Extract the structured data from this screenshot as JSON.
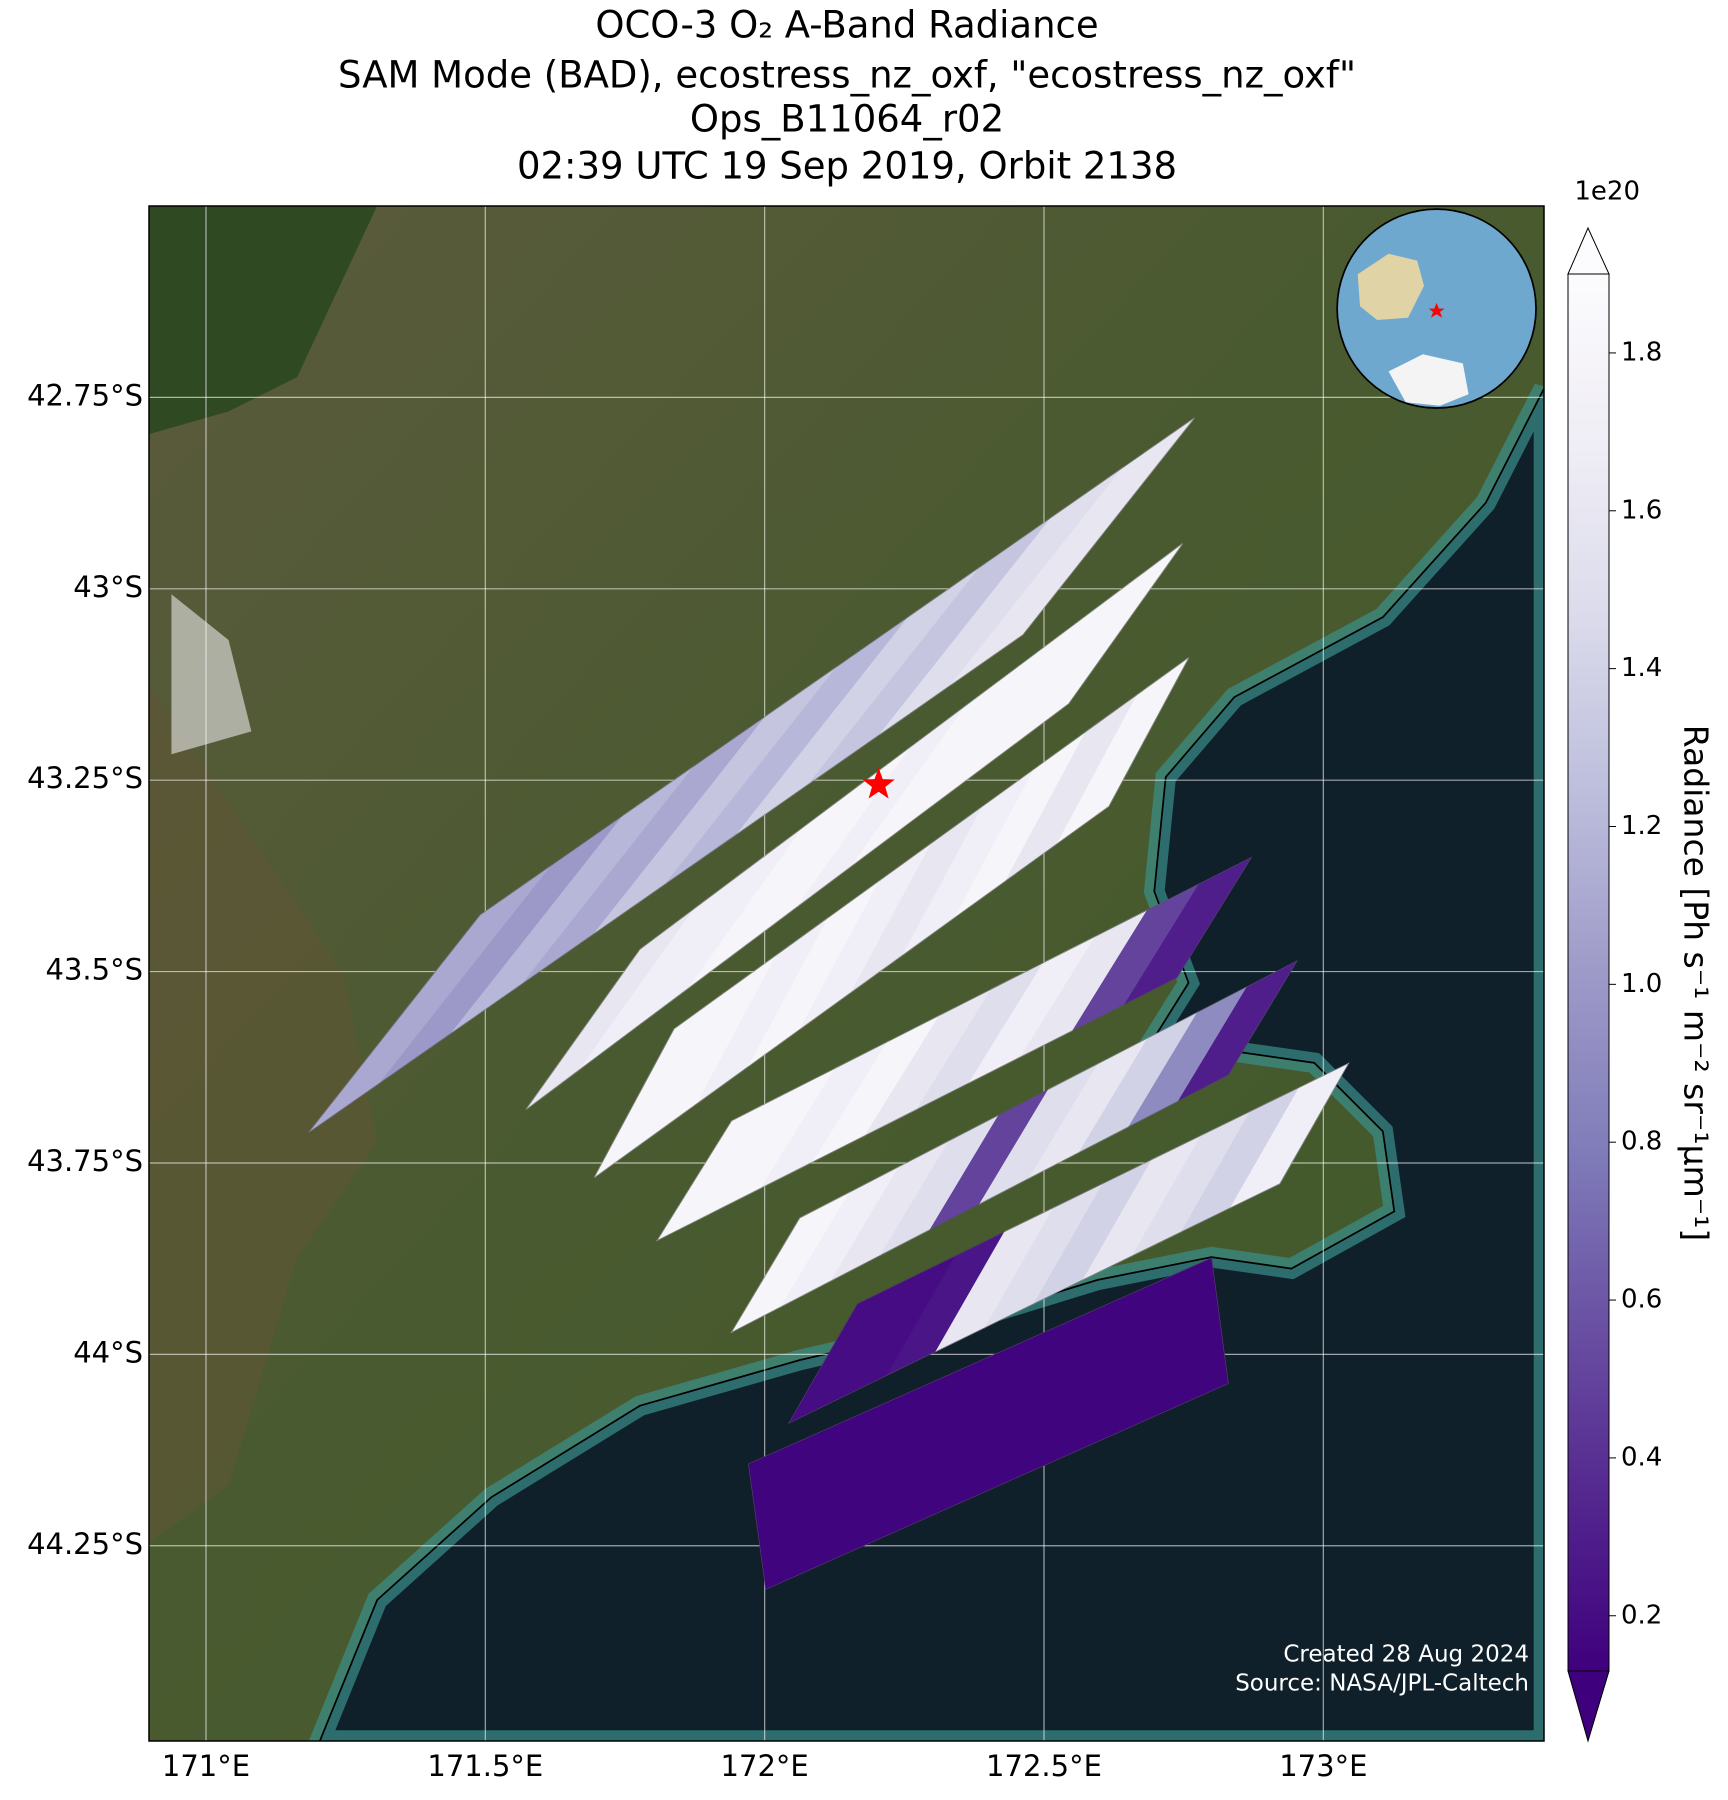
{
  "chart_data": {
    "type": "map",
    "title": [
      "OCO-3 O₂ A-Band Radiance",
      "SAM Mode (BAD), ecostress_nz_oxf, \"ecostress_nz_oxf\"",
      "Ops_B11064_r02",
      "02:39 UTC 19 Sep 2019, Orbit 2138"
    ],
    "xlim": [
      170.898,
      173.395
    ],
    "ylim": [
      -44.505,
      -42.5
    ],
    "xticks": [
      {
        "value": 171,
        "label": "171°E"
      },
      {
        "value": 171.5,
        "label": "171.5°E"
      },
      {
        "value": 172,
        "label": "172°E"
      },
      {
        "value": 172.5,
        "label": "172.5°E"
      },
      {
        "value": 173,
        "label": "173°E"
      }
    ],
    "yticks": [
      {
        "value": -42.75,
        "label": "42.75°S"
      },
      {
        "value": -43,
        "label": "43°S"
      },
      {
        "value": -43.25,
        "label": "43.25°S"
      },
      {
        "value": -43.5,
        "label": "43.5°S"
      },
      {
        "value": -43.75,
        "label": "43.75°S"
      },
      {
        "value": -44,
        "label": "44°S"
      },
      {
        "value": -44.25,
        "label": "44.25°S"
      }
    ],
    "grid": true,
    "colorbar": {
      "label": "Radiance [Ph s⁻¹ m⁻² sr⁻¹μm⁻¹]",
      "exponent": "1e20",
      "clim": [
        0.13,
        1.9
      ],
      "ticks": [
        0.2,
        0.4,
        0.6,
        0.8,
        {
          "value": 1,
          "label": "1.0"
        },
        1.2,
        1.4,
        1.6,
        1.8
      ],
      "colormap": [
        "#3f007d",
        "#54278f",
        "#6a51a3",
        "#807dba",
        "#9e9ac8",
        "#bcbddc",
        "#dadaeb",
        "#efedf5",
        "#fcfbfd"
      ]
    },
    "swaths": [
      {
        "corners": [
          [
            171.184,
            -43.71
          ],
          [
            171.491,
            -43.426
          ],
          [
            172.769,
            -42.777
          ],
          [
            172.462,
            -43.06
          ]
        ],
        "values": [
          1.1,
          1.0,
          1.2,
          1.1,
          1.3,
          1.2,
          1.4,
          1.3,
          1.5,
          1.6
        ]
      },
      {
        "corners": [
          [
            171.573,
            -43.68
          ],
          [
            171.777,
            -43.471
          ],
          [
            172.748,
            -42.941
          ],
          [
            172.544,
            -43.15
          ]
        ],
        "values": [
          1.6,
          1.7,
          1.7,
          1.8,
          1.8,
          1.7,
          1.8,
          1.8,
          1.8,
          1.8
        ]
      },
      {
        "corners": [
          [
            171.695,
            -43.769
          ],
          [
            171.838,
            -43.575
          ],
          [
            172.759,
            -43.09
          ],
          [
            172.616,
            -43.284
          ]
        ],
        "values": [
          1.8,
          1.8,
          1.7,
          1.8,
          1.7,
          1.6,
          1.7,
          1.8,
          1.6,
          1.8
        ]
      },
      {
        "corners": [
          [
            171.808,
            -43.851
          ],
          [
            171.941,
            -43.695
          ],
          [
            172.871,
            -43.351
          ],
          [
            172.738,
            -43.508
          ]
        ],
        "values": [
          1.8,
          1.8,
          1.7,
          1.8,
          1.6,
          1.5,
          1.7,
          1.6,
          0.5,
          0.3
        ]
      },
      {
        "corners": [
          [
            171.941,
            -43.971
          ],
          [
            172.063,
            -43.822
          ],
          [
            172.953,
            -43.486
          ],
          [
            172.83,
            -43.635
          ]
        ],
        "values": [
          1.8,
          1.7,
          1.6,
          1.5,
          0.5,
          1.5,
          1.6,
          1.4,
          0.9,
          0.3
        ]
      },
      {
        "corners": [
          [
            172.043,
            -44.09
          ],
          [
            172.166,
            -43.934
          ],
          [
            173.045,
            -43.62
          ],
          [
            172.922,
            -43.777
          ]
        ],
        "values": [
          0.2,
          0.2,
          0.25,
          1.6,
          1.5,
          1.4,
          1.6,
          1.5,
          1.4,
          1.7
        ]
      },
      {
        "corners": [
          [
            172.002,
            -44.307
          ],
          [
            171.971,
            -44.143
          ],
          [
            172.8,
            -43.874
          ],
          [
            172.83,
            -44.038
          ]
        ],
        "values": [
          0.15,
          0.15,
          0.15,
          0.15,
          0.15,
          0.15,
          0.15,
          0.15,
          0.15,
          0.15
        ]
      }
    ],
    "marker": {
      "lon": 172.204,
      "lat": -43.256,
      "color": "#ff0000"
    },
    "notes": [
      "Created 28 Aug 2024",
      "Source: NASA/JPL-Caltech"
    ]
  }
}
